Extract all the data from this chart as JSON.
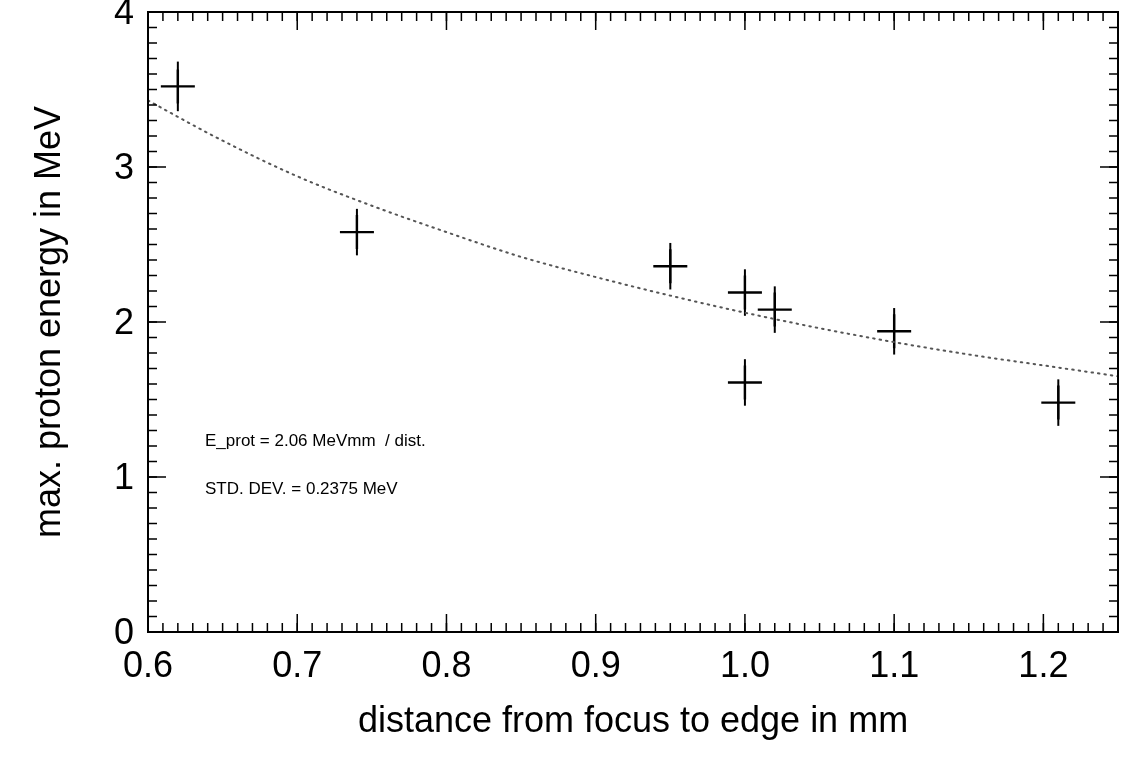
{
  "chart_data": {
    "type": "scatter",
    "xlabel": "distance from focus to edge in mm",
    "ylabel": "max. proton energy in MeV",
    "xlim": [
      0.6,
      1.25
    ],
    "xticks": [
      {
        "value": 0.6,
        "label": "0.6"
      },
      {
        "value": 0.7,
        "label": "0.7"
      },
      {
        "value": 0.8,
        "label": "0.8"
      },
      {
        "value": 0.9,
        "label": "0.9"
      },
      {
        "value": 1.0,
        "label": "1.0"
      },
      {
        "value": 1.1,
        "label": "1.1"
      },
      {
        "value": 1.2,
        "label": "1.2"
      }
    ],
    "ylim": [
      0,
      4
    ],
    "yticks": [
      0,
      1,
      2,
      3,
      4
    ],
    "grid": false,
    "marker": "cross",
    "annotations": [
      "E_prot = 2.06 MeVmm  / dist.",
      "STD. DEV. = 0.2375 MeV"
    ],
    "series": [
      {
        "color": "#000000",
        "x": [
          0.62,
          0.74,
          0.95,
          1.0,
          1.0,
          1.02,
          1.1,
          1.21
        ],
        "values": [
          3.52,
          2.58,
          2.36,
          2.19,
          1.61,
          2.08,
          1.94,
          1.48
        ],
        "errors": [
          0.16,
          0.15,
          0.15,
          0.15,
          0.15,
          0.15,
          0.15,
          0.15
        ]
      },
      {
        "type": "line",
        "color": "#555555",
        "line_style": "dotted",
        "marker": "none",
        "x": [
          0.6,
          0.65,
          0.7,
          0.75,
          0.8,
          0.85,
          0.9,
          0.95,
          1.0,
          1.05,
          1.1,
          1.15,
          1.2,
          1.25
        ],
        "values": [
          3.43,
          3.17,
          2.94,
          2.75,
          2.58,
          2.42,
          2.29,
          2.17,
          2.06,
          1.96,
          1.87,
          1.79,
          1.72,
          1.65
        ]
      }
    ]
  }
}
